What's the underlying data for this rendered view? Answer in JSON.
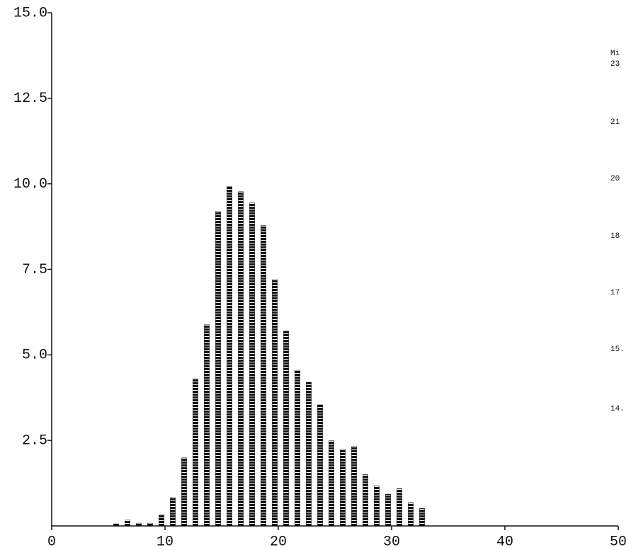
{
  "chart_data": {
    "type": "bar",
    "x": [
      6,
      7,
      8,
      9,
      10,
      11,
      12,
      13,
      14,
      15,
      16,
      17,
      18,
      19,
      20,
      21,
      22,
      23,
      24,
      25,
      26,
      27,
      28,
      29,
      30,
      31,
      32,
      33
    ],
    "values": [
      0.06,
      0.17,
      0.08,
      0.08,
      0.33,
      0.83,
      1.99,
      4.3,
      5.88,
      9.19,
      9.92,
      9.77,
      9.44,
      8.78,
      7.2,
      5.7,
      4.55,
      4.2,
      3.54,
      2.49,
      2.24,
      2.32,
      1.5,
      1.17,
      0.93,
      1.09,
      0.68,
      0.51
    ],
    "color": "#111111",
    "xlim": [
      0,
      50
    ],
    "xticks": [
      0,
      10,
      20,
      30,
      40,
      50
    ],
    "ylim": [
      0,
      15
    ],
    "yticks": [
      2.5,
      {
        "value": 5,
        "label": "5.0"
      },
      7.5,
      {
        "value": 10,
        "label": "10.0"
      },
      12.5,
      {
        "value": 15,
        "label": "15.0"
      }
    ],
    "side_labels": [
      "Mi",
      "23",
      "21",
      "20",
      "18",
      "17",
      "15.",
      "14."
    ]
  }
}
